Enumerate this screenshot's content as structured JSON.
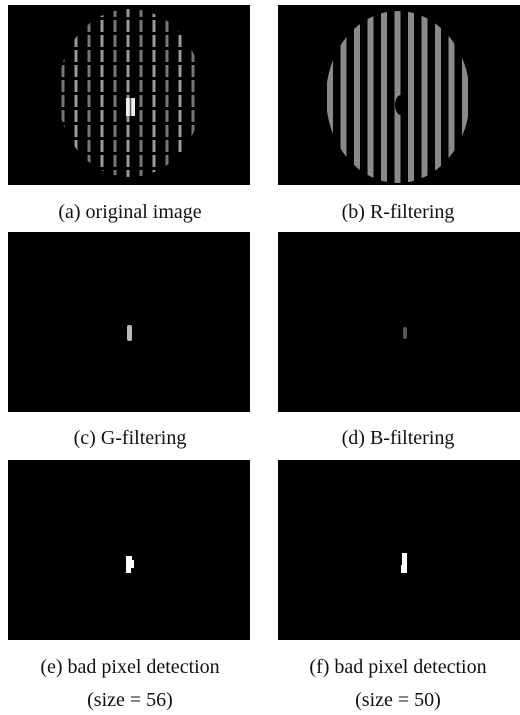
{
  "panels": [
    {
      "caption": "(a) original image"
    },
    {
      "caption": "(b) R-filtering"
    },
    {
      "caption": "(c) G-filtering"
    },
    {
      "caption": "(d) B-filtering"
    },
    {
      "caption": "(e) bad pixel detection",
      "note": "(size = 56)"
    },
    {
      "caption": "(f) bad pixel detection",
      "note": "(size = 50)"
    }
  ]
}
